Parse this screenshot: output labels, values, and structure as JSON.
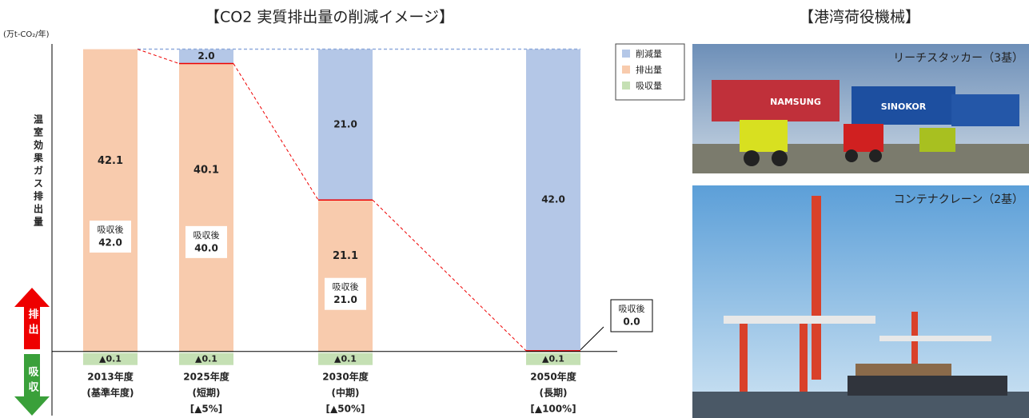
{
  "chart_data": {
    "type": "stacked-bar",
    "title": "【CO2 実質排出量の削減イメージ】",
    "y_unit": "(万t-CO₂/年)",
    "y_label": "温室効果ガス排出量",
    "up_arrow": "排出",
    "down_arrow": "吸収",
    "categories": [
      "2013年度",
      "2025年度",
      "2030年度",
      "2050年度"
    ],
    "category_notes": [
      "(基準年度)",
      "(短期)",
      "(中期)",
      "(長期)"
    ],
    "category_targets": [
      null,
      "[▲5%]",
      "[▲50%]",
      "[▲100%]"
    ],
    "series": [
      {
        "name": "削減量",
        "color": "#b4c7e7",
        "values": [
          null,
          2.0,
          21.0,
          42.0
        ],
        "value_labels": [
          null,
          "2.0",
          "21.0",
          "42.0"
        ]
      },
      {
        "name": "排出量",
        "color": "#f8cbad",
        "values": [
          42.1,
          40.1,
          21.1,
          0.1
        ]
      },
      {
        "name": "吸収量",
        "color": "#c5e0b4",
        "values": [
          -0.1,
          -0.1,
          -0.1,
          -0.1
        ],
        "value_labels": [
          "▲0.1",
          "▲0.1",
          "▲0.1",
          "▲0.1"
        ]
      }
    ],
    "after_absorption": {
      "label": "吸収後",
      "values": [
        42.0,
        40.0,
        21.0,
        0.0
      ],
      "value_labels": [
        "42.0",
        "40.0",
        "21.0",
        "0.0"
      ]
    },
    "ylim": [
      -1.7,
      44.5
    ]
  },
  "equipment": {
    "title": "【港湾荷役機械】",
    "photos": [
      {
        "caption": "リーチスタッカー（3基）"
      },
      {
        "caption": "コンテナクレーン（2基）"
      }
    ]
  }
}
